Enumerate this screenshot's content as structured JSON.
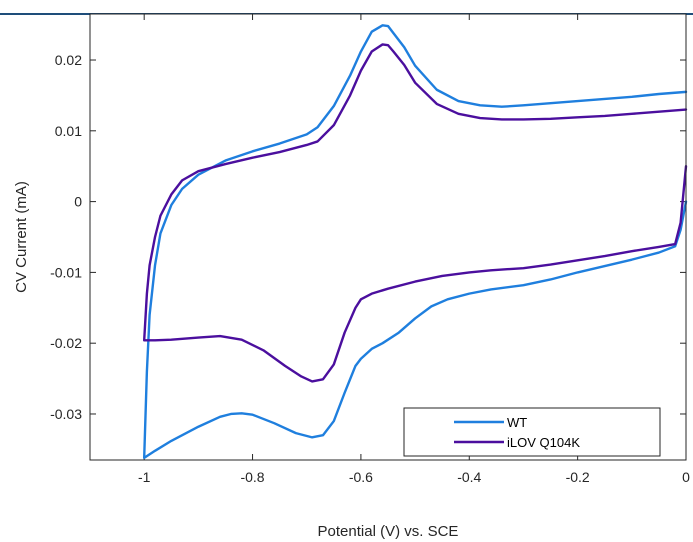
{
  "chart_data": {
    "type": "line",
    "title": "",
    "xlabel": "Potential (V) vs. SCE",
    "ylabel": "CV Current (mA)",
    "xlim": [
      -1.1,
      0
    ],
    "ylim": [
      -0.0365,
      0.0265
    ],
    "x_ticks": [
      -1,
      -0.8,
      -0.6,
      -0.4,
      -0.2,
      0
    ],
    "x_tick_labels": [
      "-1",
      "-0.8",
      "-0.6",
      "-0.4",
      "-0.2",
      "0"
    ],
    "y_ticks": [
      0.02,
      0.01,
      0,
      -0.01,
      -0.02,
      -0.03
    ],
    "y_tick_labels": [
      "0.02",
      "0.01",
      "0",
      "-0.01",
      "-0.02",
      "-0.03"
    ],
    "grid": false,
    "legend_position": "bottom-right",
    "series": [
      {
        "name": "WT",
        "color": "#1f7fde",
        "points": [
          [
            0.0,
            0.0155
          ],
          [
            -0.05,
            0.0152
          ],
          [
            -0.1,
            0.0148
          ],
          [
            -0.15,
            0.0145
          ],
          [
            -0.2,
            0.0142
          ],
          [
            -0.25,
            0.0139
          ],
          [
            -0.3,
            0.0136
          ],
          [
            -0.34,
            0.0134
          ],
          [
            -0.38,
            0.0136
          ],
          [
            -0.42,
            0.0142
          ],
          [
            -0.46,
            0.0158
          ],
          [
            -0.5,
            0.0192
          ],
          [
            -0.52,
            0.0218
          ],
          [
            -0.54,
            0.0238
          ],
          [
            -0.55,
            0.0248
          ],
          [
            -0.56,
            0.0249
          ],
          [
            -0.58,
            0.024
          ],
          [
            -0.6,
            0.0212
          ],
          [
            -0.62,
            0.0178
          ],
          [
            -0.65,
            0.0135
          ],
          [
            -0.68,
            0.0105
          ],
          [
            -0.7,
            0.0095
          ],
          [
            -0.75,
            0.0082
          ],
          [
            -0.8,
            0.0071
          ],
          [
            -0.85,
            0.0058
          ],
          [
            -0.9,
            0.0038
          ],
          [
            -0.93,
            0.0018
          ],
          [
            -0.95,
            -0.0005
          ],
          [
            -0.97,
            -0.0045
          ],
          [
            -0.98,
            -0.009
          ],
          [
            -0.99,
            -0.016
          ],
          [
            -0.995,
            -0.024
          ],
          [
            -1.0,
            -0.0362
          ],
          [
            -0.98,
            -0.0352
          ],
          [
            -0.95,
            -0.0338
          ],
          [
            -0.9,
            -0.0318
          ],
          [
            -0.86,
            -0.0304
          ],
          [
            -0.84,
            -0.03
          ],
          [
            -0.82,
            -0.0299
          ],
          [
            -0.8,
            -0.0301
          ],
          [
            -0.76,
            -0.0313
          ],
          [
            -0.72,
            -0.0327
          ],
          [
            -0.69,
            -0.0333
          ],
          [
            -0.67,
            -0.033
          ],
          [
            -0.65,
            -0.031
          ],
          [
            -0.63,
            -0.027
          ],
          [
            -0.61,
            -0.0232
          ],
          [
            -0.6,
            -0.0222
          ],
          [
            -0.58,
            -0.0208
          ],
          [
            -0.56,
            -0.02
          ],
          [
            -0.53,
            -0.0185
          ],
          [
            -0.5,
            -0.0165
          ],
          [
            -0.47,
            -0.0148
          ],
          [
            -0.44,
            -0.0138
          ],
          [
            -0.4,
            -0.013
          ],
          [
            -0.36,
            -0.0124
          ],
          [
            -0.3,
            -0.0118
          ],
          [
            -0.25,
            -0.011
          ],
          [
            -0.2,
            -0.01
          ],
          [
            -0.15,
            -0.0091
          ],
          [
            -0.1,
            -0.0082
          ],
          [
            -0.05,
            -0.0072
          ],
          [
            -0.02,
            -0.0063
          ],
          [
            -0.01,
            -0.004
          ],
          [
            0.0,
            0.0
          ]
        ]
      },
      {
        "name": "iLOV Q104K",
        "color": "#4b0f9e",
        "points": [
          [
            0.0,
            0.013
          ],
          [
            -0.05,
            0.0127
          ],
          [
            -0.1,
            0.0124
          ],
          [
            -0.15,
            0.0121
          ],
          [
            -0.2,
            0.0119
          ],
          [
            -0.25,
            0.0117
          ],
          [
            -0.3,
            0.0116
          ],
          [
            -0.34,
            0.0116
          ],
          [
            -0.38,
            0.0118
          ],
          [
            -0.42,
            0.0124
          ],
          [
            -0.46,
            0.0138
          ],
          [
            -0.5,
            0.0168
          ],
          [
            -0.52,
            0.0193
          ],
          [
            -0.54,
            0.0212
          ],
          [
            -0.55,
            0.0221
          ],
          [
            -0.56,
            0.0222
          ],
          [
            -0.58,
            0.0212
          ],
          [
            -0.6,
            0.0185
          ],
          [
            -0.62,
            0.015
          ],
          [
            -0.65,
            0.0108
          ],
          [
            -0.68,
            0.0085
          ],
          [
            -0.7,
            0.008
          ],
          [
            -0.75,
            0.007
          ],
          [
            -0.8,
            0.0062
          ],
          [
            -0.85,
            0.0053
          ],
          [
            -0.9,
            0.0043
          ],
          [
            -0.93,
            0.003
          ],
          [
            -0.95,
            0.001
          ],
          [
            -0.97,
            -0.002
          ],
          [
            -0.98,
            -0.005
          ],
          [
            -0.99,
            -0.009
          ],
          [
            -0.995,
            -0.013
          ],
          [
            -1.0,
            -0.0196
          ],
          [
            -0.98,
            -0.0196
          ],
          [
            -0.95,
            -0.0195
          ],
          [
            -0.9,
            -0.0192
          ],
          [
            -0.86,
            -0.019
          ],
          [
            -0.82,
            -0.0195
          ],
          [
            -0.78,
            -0.021
          ],
          [
            -0.74,
            -0.0232
          ],
          [
            -0.71,
            -0.0247
          ],
          [
            -0.69,
            -0.0254
          ],
          [
            -0.67,
            -0.0251
          ],
          [
            -0.65,
            -0.023
          ],
          [
            -0.63,
            -0.0185
          ],
          [
            -0.61,
            -0.015
          ],
          [
            -0.6,
            -0.0138
          ],
          [
            -0.58,
            -0.013
          ],
          [
            -0.55,
            -0.0123
          ],
          [
            -0.5,
            -0.0113
          ],
          [
            -0.45,
            -0.0105
          ],
          [
            -0.4,
            -0.01
          ],
          [
            -0.36,
            -0.0097
          ],
          [
            -0.3,
            -0.0094
          ],
          [
            -0.25,
            -0.0089
          ],
          [
            -0.2,
            -0.0083
          ],
          [
            -0.15,
            -0.0077
          ],
          [
            -0.1,
            -0.007
          ],
          [
            -0.05,
            -0.0064
          ],
          [
            -0.02,
            -0.006
          ],
          [
            -0.01,
            -0.003
          ],
          [
            0.0,
            0.005
          ]
        ]
      }
    ]
  }
}
